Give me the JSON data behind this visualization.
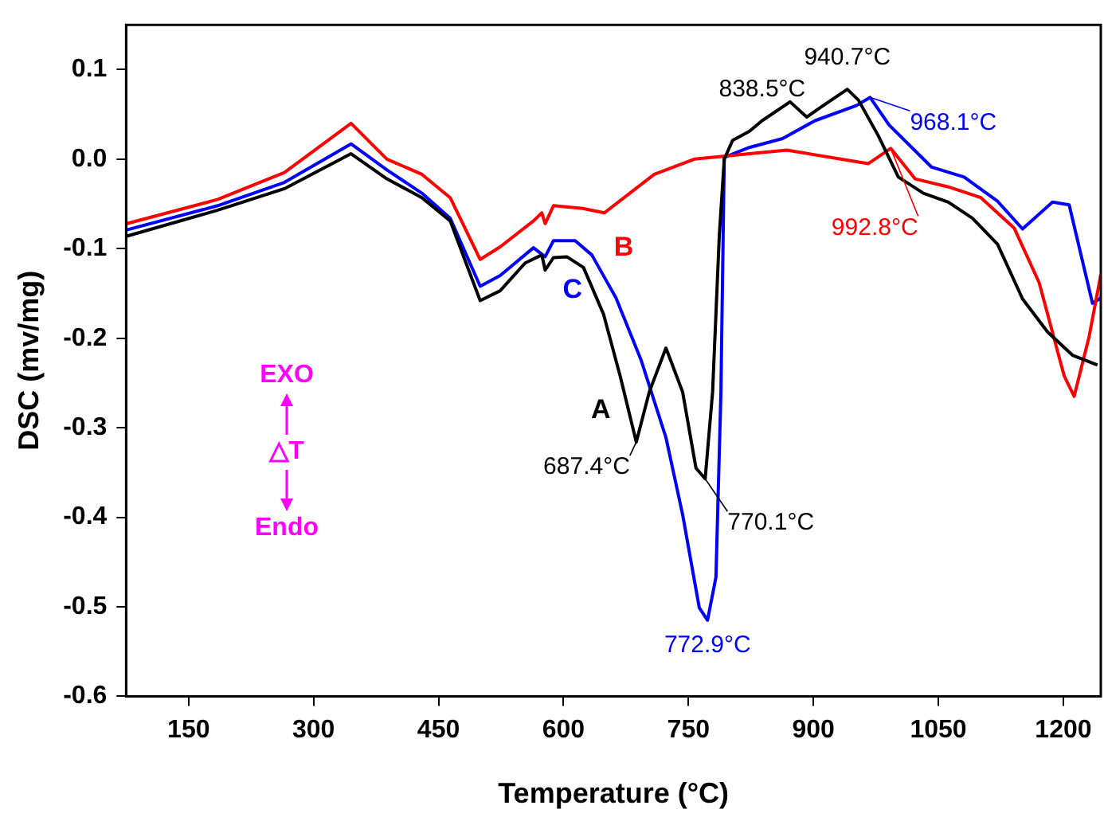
{
  "chart_data": {
    "type": "line",
    "xlabel": "Temperature (°C)",
    "ylabel": "DSC (mv/mg)",
    "xlim": [
      75,
      1245
    ],
    "xticks": [
      150,
      300,
      450,
      600,
      750,
      900,
      1050,
      1200
    ],
    "ylim": [
      -0.6,
      0.15
    ],
    "yticks": [
      -0.6,
      -0.5,
      -0.4,
      -0.3,
      -0.2,
      -0.1,
      {
        "value": 0,
        "label": "0.0"
      },
      0.1
    ],
    "grid": false,
    "legend": false,
    "marker": "none",
    "line_style": "solid",
    "series": [
      {
        "name": "A",
        "color": "#000000",
        "x": [
          76,
          185,
          265,
          345,
          388,
          430,
          464,
          500,
          524,
          554,
          574,
          578,
          588,
          604,
          624,
          648,
          668,
          687.4,
          703,
          723,
          743,
          759,
          770.1,
          779,
          787,
          793,
          803,
          823,
          838.5,
          872,
          892,
          912,
          940.7,
          954,
          978,
          1002,
          1032,
          1062,
          1091,
          1121,
          1151,
          1181,
          1211,
          1241
        ],
        "values": [
          -0.086,
          -0.057,
          -0.033,
          0.006,
          -0.022,
          -0.043,
          -0.069,
          -0.158,
          -0.147,
          -0.116,
          -0.107,
          -0.124,
          -0.11,
          -0.109,
          -0.121,
          -0.173,
          -0.242,
          -0.316,
          -0.26,
          -0.211,
          -0.26,
          -0.345,
          -0.357,
          -0.26,
          -0.086,
          0.0,
          0.021,
          0.031,
          0.043,
          0.064,
          0.047,
          0.06,
          0.078,
          0.066,
          0.026,
          -0.02,
          -0.038,
          -0.048,
          -0.066,
          -0.095,
          -0.156,
          -0.193,
          -0.219,
          -0.23
        ]
      },
      {
        "name": "B",
        "color": "#ff0000",
        "x": [
          76,
          185,
          265,
          345,
          388,
          430,
          464,
          500,
          524,
          564,
          574,
          578,
          588,
          623,
          649,
          709,
          757,
          868,
          966,
          992.8,
          1022,
          1062,
          1101,
          1141,
          1171,
          1201,
          1213,
          1231,
          1245
        ],
        "values": [
          -0.072,
          -0.045,
          -0.015,
          0.04,
          0.0,
          -0.017,
          -0.043,
          -0.112,
          -0.098,
          -0.069,
          -0.06,
          -0.072,
          -0.052,
          -0.055,
          -0.06,
          -0.017,
          0.0,
          0.01,
          -0.005,
          0.012,
          -0.022,
          -0.031,
          -0.043,
          -0.077,
          -0.138,
          -0.242,
          -0.265,
          -0.198,
          -0.129
        ]
      },
      {
        "name": "C",
        "color": "#0000ff",
        "x": [
          76,
          185,
          265,
          345,
          388,
          430,
          464,
          500,
          524,
          564,
          578,
          588,
          614,
          634,
          663,
          693,
          723,
          743,
          763,
          772.9,
          783,
          789,
          793,
          823,
          863,
          902,
          952,
          968.1,
          991,
          1042,
          1081,
          1121,
          1151,
          1187,
          1207,
          1235,
          1245
        ],
        "values": [
          -0.079,
          -0.052,
          -0.026,
          0.017,
          -0.012,
          -0.038,
          -0.066,
          -0.142,
          -0.13,
          -0.099,
          -0.109,
          -0.091,
          -0.091,
          -0.107,
          -0.155,
          -0.224,
          -0.311,
          -0.397,
          -0.501,
          -0.515,
          -0.467,
          -0.26,
          0.002,
          0.013,
          0.023,
          0.043,
          0.06,
          0.069,
          0.038,
          -0.009,
          -0.02,
          -0.047,
          -0.078,
          -0.048,
          -0.051,
          -0.161,
          -0.155
        ]
      }
    ],
    "annotations": [
      {
        "text": "687.4°C",
        "x": 687.4,
        "y": -0.316
      },
      {
        "text": "770.1°C",
        "x": 770.1,
        "y": -0.357
      },
      {
        "text": "772.9°C",
        "x": 772.9,
        "y": -0.515
      },
      {
        "text": "838.5°C",
        "x": 838.5,
        "y": 0.043
      },
      {
        "text": "940.7°C",
        "x": 940.7,
        "y": 0.078
      },
      {
        "text": "968.1°C",
        "x": 968.1,
        "y": 0.069
      },
      {
        "text": "992.8°C",
        "x": 992.8,
        "y": 0.012
      },
      "EXO",
      "△T",
      "Endo"
    ]
  }
}
